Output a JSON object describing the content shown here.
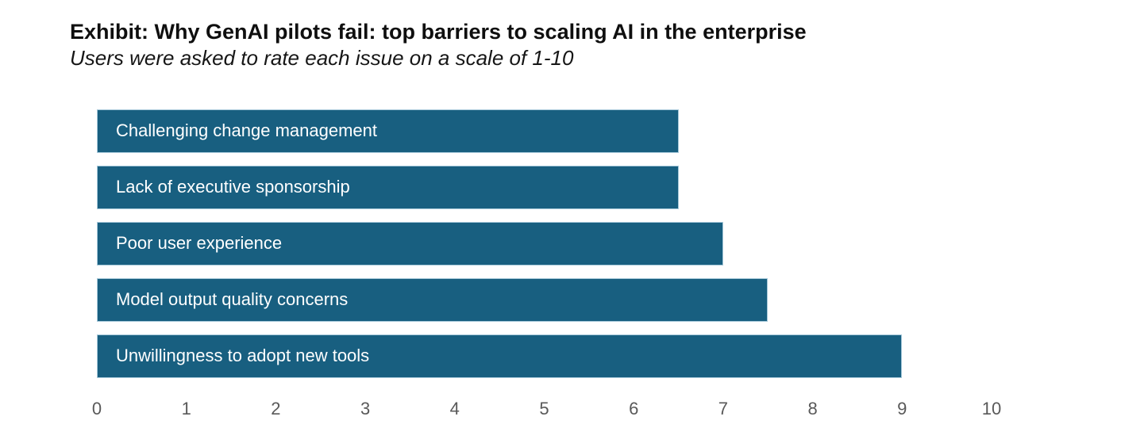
{
  "chart_data": {
    "type": "bar",
    "orientation": "horizontal",
    "title": "Exhibit: Why GenAI pilots fail: top barriers to scaling AI in the enterprise",
    "subtitle": "Users were asked to rate each issue on a scale of 1-10",
    "categories": [
      "Challenging change management",
      "Lack of executive sponsorship",
      "Poor user experience",
      "Model output quality concerns",
      "Unwillingness to adopt new tools"
    ],
    "values": [
      6.5,
      6.5,
      7,
      7.5,
      9
    ],
    "xlabel": "",
    "ylabel": "",
    "xlim": [
      0,
      10
    ],
    "x_ticks": [
      0,
      1,
      2,
      3,
      4,
      5,
      6,
      7,
      8,
      9,
      10
    ],
    "grid": false,
    "legend": false,
    "colors": {
      "bar_fill": "#185f80",
      "bar_border": "#a7c9da",
      "bar_label": "#ffffff",
      "axis_label": "#595959",
      "title": "#0f0f0f",
      "subtitle": "#161616",
      "background": "#ffffff"
    }
  }
}
